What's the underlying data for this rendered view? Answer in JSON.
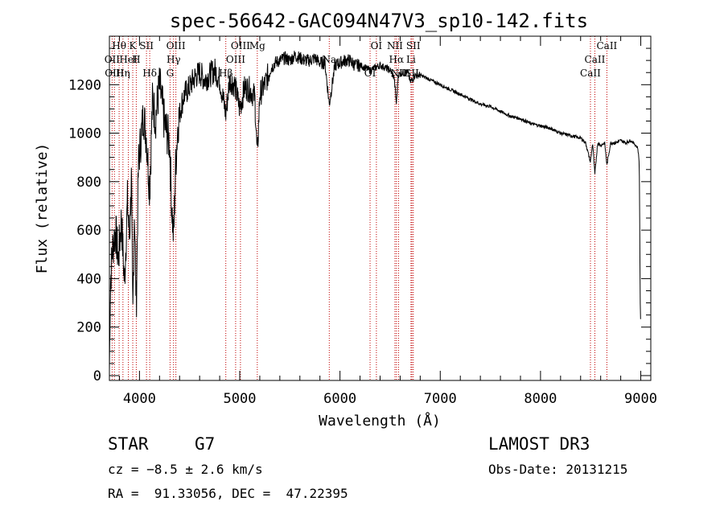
{
  "chart_data": {
    "type": "line",
    "title": "spec-56642-GAC094N47V3_sp10-142.fits",
    "xlabel": "Wavelength (Å)",
    "ylabel": "Flux (relative)",
    "xlim": [
      3700,
      9100
    ],
    "ylim": [
      -20,
      1400
    ],
    "xticks": [
      4000,
      5000,
      6000,
      7000,
      8000,
      9000
    ],
    "xtick_labels": [
      "4000",
      "5000",
      "6000",
      "7000",
      "8000",
      "9000"
    ],
    "yticks": [
      0,
      200,
      400,
      600,
      800,
      1000,
      1200
    ],
    "ytick_labels": [
      "0",
      "200",
      "400",
      "600",
      "800",
      "1000",
      "1200"
    ],
    "series": [
      {
        "name": "flux",
        "x": [
          3700,
          3710,
          3730,
          3760,
          3790,
          3820,
          3850,
          3880,
          3900,
          3920,
          3933,
          3950,
          3968,
          3990,
          4010,
          4040,
          4070,
          4102,
          4130,
          4160,
          4200,
          4250,
          4300,
          4320,
          4340,
          4360,
          4383,
          4420,
          4450,
          4500,
          4550,
          4600,
          4650,
          4700,
          4750,
          4800,
          4861,
          4900,
          4950,
          5000,
          5050,
          5100,
          5150,
          5175,
          5200,
          5250,
          5300,
          5350,
          5400,
          5450,
          5500,
          5550,
          5600,
          5650,
          5700,
          5750,
          5800,
          5850,
          5893,
          5950,
          6000,
          6050,
          6100,
          6150,
          6200,
          6250,
          6300,
          6350,
          6400,
          6450,
          6500,
          6540,
          6563,
          6580,
          6620,
          6680,
          6700,
          6750,
          6800,
          6850,
          6900,
          6950,
          7000,
          7100,
          7200,
          7300,
          7400,
          7500,
          7600,
          7700,
          7800,
          7900,
          8000,
          8100,
          8200,
          8300,
          8400,
          8450,
          8498,
          8520,
          8542,
          8570,
          8600,
          8640,
          8662,
          8700,
          8750,
          8800,
          8850,
          8900,
          8950,
          8970,
          8985,
          8995,
          9000
        ],
        "values": [
          20,
          380,
          520,
          600,
          480,
          650,
          380,
          720,
          560,
          820,
          220,
          700,
          280,
          880,
          960,
          1080,
          980,
          760,
          1140,
          1060,
          1200,
          1040,
          960,
          720,
          560,
          860,
          1040,
          1120,
          1160,
          1190,
          1230,
          1250,
          1220,
          1240,
          1260,
          1220,
          1080,
          1220,
          1200,
          1100,
          1190,
          1180,
          1150,
          900,
          1160,
          1200,
          1260,
          1290,
          1300,
          1310,
          1300,
          1320,
          1310,
          1300,
          1300,
          1310,
          1290,
          1290,
          1120,
          1280,
          1290,
          1300,
          1300,
          1280,
          1280,
          1270,
          1260,
          1270,
          1280,
          1270,
          1260,
          1230,
          1120,
          1240,
          1250,
          1250,
          1210,
          1240,
          1240,
          1230,
          1220,
          1210,
          1200,
          1180,
          1160,
          1140,
          1120,
          1110,
          1090,
          1070,
          1060,
          1040,
          1030,
          1020,
          1000,
          990,
          980,
          960,
          880,
          960,
          830,
          960,
          950,
          960,
          870,
          960,
          960,
          970,
          960,
          970,
          950,
          940,
          880,
          300,
          180
        ]
      }
    ],
    "line_ids": [
      {
        "label": "Hθ",
        "x": 3797
      },
      {
        "label": "OII",
        "x": 3727
      },
      {
        "label": "OIII",
        "x": 3750
      },
      {
        "label": "K",
        "x": 3933
      },
      {
        "label": "HeI",
        "x": 3889
      },
      {
        "label": "Hη",
        "x": 3835
      },
      {
        "label": "SII",
        "x": 4070
      },
      {
        "label": "H",
        "x": 3968
      },
      {
        "label": "Hδ",
        "x": 4102
      },
      {
        "label": "OIII",
        "x": 4363
      },
      {
        "label": "Hγ",
        "x": 4340
      },
      {
        "label": "G",
        "x": 4305
      },
      {
        "label": "OIII",
        "x": 5007
      },
      {
        "label": "OIII",
        "x": 4959
      },
      {
        "label": "Hβ",
        "x": 4861
      },
      {
        "label": "Mg",
        "x": 5175
      },
      {
        "label": "Na",
        "x": 5893
      },
      {
        "label": "OI",
        "x": 6300
      },
      {
        "label": "OI",
        "x": 6363
      },
      {
        "label": "Hα",
        "x": 6563
      },
      {
        "label": "SII",
        "x": 6717
      },
      {
        "label": "NII",
        "x": 6548
      },
      {
        "label": "Li",
        "x": 6708
      },
      {
        "label": "NII",
        "x": 6584
      },
      {
        "label": "SII",
        "x": 6731
      },
      {
        "label": "CaII",
        "x": 8542
      },
      {
        "label": "CaII",
        "x": 8498
      },
      {
        "label": "CaII",
        "x": 8662
      }
    ],
    "grid": false,
    "legend": "none"
  },
  "info": {
    "object_class": "STAR",
    "subclass": "G7",
    "redshift_text": "cz = −8.5 ± 2.6 km/s",
    "coords_text": "RA =  91.33056, DEC =  47.22395",
    "survey": "LAMOST DR3",
    "obs_date": "Obs-Date: 20131215"
  }
}
